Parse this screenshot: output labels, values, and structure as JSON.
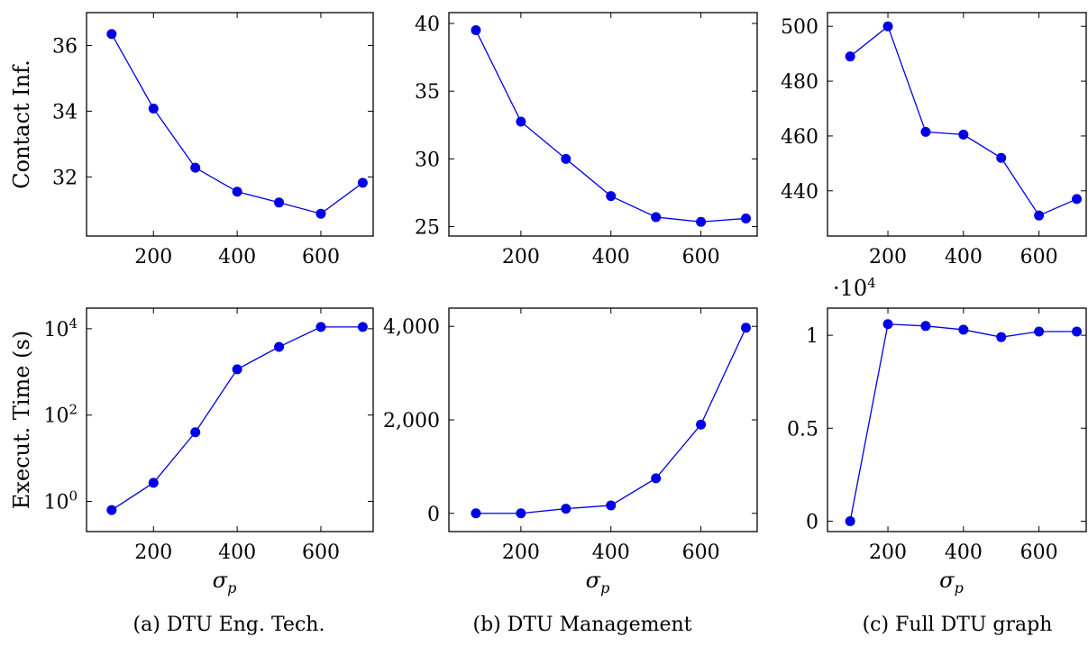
{
  "chart_data": [
    {
      "type": "line",
      "ylabel": "Contact Inf.",
      "xlabel": "",
      "x": [
        100,
        200,
        300,
        400,
        500,
        600,
        700
      ],
      "series": [
        {
          "values": [
            36.35,
            34.08,
            32.28,
            31.55,
            31.22,
            30.88,
            31.82
          ]
        }
      ],
      "xticks": [
        200,
        400,
        600
      ],
      "xtick_labels": [
        "200",
        "400",
        "600"
      ],
      "yticks": [
        32,
        34,
        36
      ],
      "ytick_labels": [
        "32",
        "34",
        "36"
      ],
      "xlim": [
        40,
        725
      ],
      "ylim": [
        30.2,
        37.0
      ],
      "yscale": "linear",
      "color": "#0000e6"
    },
    {
      "type": "line",
      "ylabel": "",
      "xlabel": "",
      "x": [
        100,
        200,
        300,
        400,
        500,
        600,
        700
      ],
      "series": [
        {
          "values": [
            39.5,
            32.75,
            30.0,
            27.25,
            25.7,
            25.35,
            25.6
          ]
        }
      ],
      "xticks": [
        200,
        400,
        600
      ],
      "xtick_labels": [
        "200",
        "400",
        "600"
      ],
      "yticks": [
        25,
        30,
        35,
        40
      ],
      "ytick_labels": [
        "25",
        "30",
        "35",
        "40"
      ],
      "xlim": [
        40,
        725
      ],
      "ylim": [
        24.3,
        40.8
      ],
      "yscale": "linear",
      "color": "#0000e6"
    },
    {
      "type": "line",
      "ylabel": "",
      "xlabel": "",
      "x": [
        100,
        200,
        300,
        400,
        500,
        600,
        700
      ],
      "series": [
        {
          "values": [
            489,
            500,
            461.5,
            460.5,
            452,
            431,
            437
          ]
        }
      ],
      "xticks": [
        200,
        400,
        600
      ],
      "xtick_labels": [
        "200",
        "400",
        "600"
      ],
      "yticks": [
        440,
        460,
        480,
        500
      ],
      "ytick_labels": [
        "440",
        "460",
        "480",
        "500"
      ],
      "xlim": [
        40,
        725
      ],
      "ylim": [
        423.5,
        505
      ],
      "yscale": "linear",
      "color": "#0000e6"
    },
    {
      "type": "line",
      "ylabel": "Execut. Time (s)",
      "xlabel": "σp",
      "x": [
        100,
        200,
        300,
        400,
        500,
        600,
        700
      ],
      "series": [
        {
          "values": [
            0.63,
            2.7,
            40,
            1150,
            3800,
            11000,
            11000
          ]
        }
      ],
      "xticks": [
        200,
        400,
        600
      ],
      "xtick_labels": [
        "200",
        "400",
        "600"
      ],
      "yticks": [
        1,
        100,
        10000
      ],
      "ytick_labels": [
        "10⁰",
        "10²",
        "10⁴"
      ],
      "xlim": [
        40,
        725
      ],
      "ylim": [
        0.2,
        30000
      ],
      "yscale": "log",
      "color": "#0000e6"
    },
    {
      "type": "line",
      "ylabel": "",
      "xlabel": "σp",
      "x": [
        100,
        200,
        300,
        400,
        500,
        600,
        700
      ],
      "series": [
        {
          "values": [
            0,
            0,
            100,
            170,
            750,
            1900,
            3970
          ]
        }
      ],
      "xticks": [
        200,
        400,
        600
      ],
      "xtick_labels": [
        "200",
        "400",
        "600"
      ],
      "yticks": [
        0,
        2000,
        4000
      ],
      "ytick_labels": [
        "0",
        "2,000",
        "4,000"
      ],
      "xlim": [
        40,
        725
      ],
      "ylim": [
        -390,
        4390
      ],
      "yscale": "linear",
      "color": "#0000e6"
    },
    {
      "type": "line",
      "ylabel": "",
      "xlabel": "σp",
      "multiplier": "·10⁴",
      "x": [
        100,
        200,
        300,
        400,
        500,
        600,
        700
      ],
      "series": [
        {
          "values": [
            0,
            10600,
            10500,
            10300,
            9900,
            10200,
            10200
          ]
        }
      ],
      "xticks": [
        200,
        400,
        600
      ],
      "xtick_labels": [
        "200",
        "400",
        "600"
      ],
      "yticks": [
        0,
        5000,
        10000
      ],
      "ytick_labels": [
        "0",
        "0.5",
        "1"
      ],
      "xlim": [
        40,
        725
      ],
      "ylim": [
        -560,
        11460
      ],
      "yscale": "linear",
      "color": "#0000e6"
    }
  ],
  "captions": [
    "(a) DTU Eng. Tech.",
    "(b) DTU Management",
    "(c) Full DTU graph"
  ]
}
